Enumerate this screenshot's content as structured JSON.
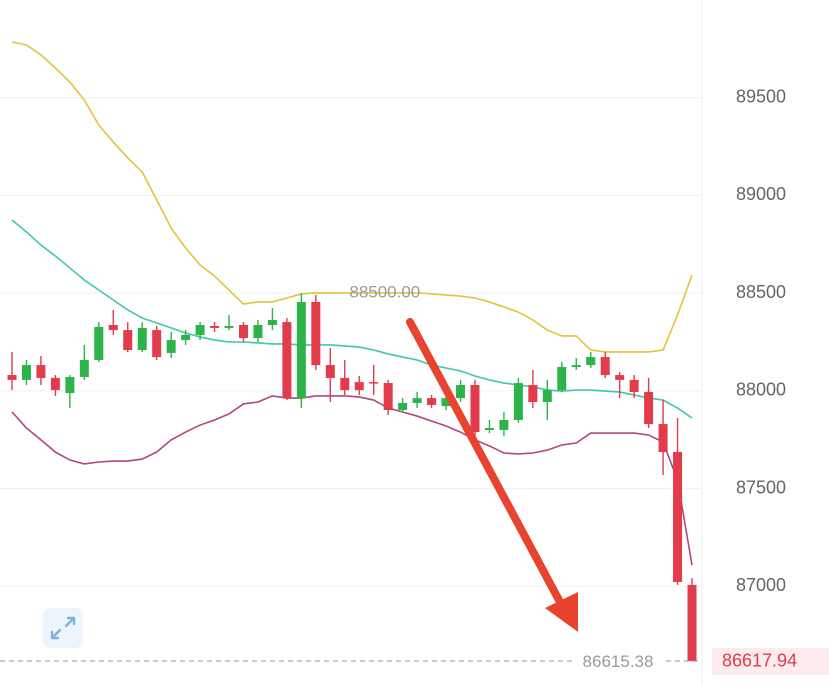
{
  "chart_data": {
    "type": "candlestick",
    "ylim": [
      86500,
      90000
    ],
    "yticks": [
      87000,
      87500,
      88000,
      88500,
      89000,
      89500
    ],
    "grid": true,
    "up_color": "#2db34a",
    "down_color": "#e23b4b",
    "open": [
      88081,
      88056,
      88132,
      88066,
      87989,
      88071,
      88158,
      88337,
      88311,
      88209,
      88311,
      88194,
      88260,
      88286,
      88332,
      88322,
      88337,
      88270,
      88337,
      88352,
      87963,
      88455,
      88132,
      88066,
      88045,
      88045,
      88040,
      87902,
      87938,
      87963,
      87922,
      87963,
      88030,
      87800,
      87800,
      87851,
      88030,
      87943,
      88004,
      88122,
      88132,
      88173,
      88081,
      88056,
      87994,
      87830,
      87687,
      87007
    ],
    "high": [
      88199,
      88158,
      88178,
      88081,
      88081,
      88235,
      88352,
      88414,
      88352,
      88352,
      88332,
      88301,
      88311,
      88352,
      88352,
      88388,
      88352,
      88363,
      88424,
      88373,
      88500,
      88490,
      88219,
      88158,
      88076,
      88132,
      88056,
      87963,
      87994,
      87979,
      88030,
      88056,
      88056,
      87851,
      87892,
      88066,
      88107,
      88056,
      88148,
      88168,
      88199,
      88199,
      88096,
      88081,
      88066,
      87953,
      87861,
      87042
    ],
    "low": [
      88004,
      88030,
      88030,
      87974,
      87912,
      88056,
      88148,
      88286,
      88199,
      88199,
      88158,
      88168,
      88235,
      88260,
      88301,
      88311,
      88250,
      88250,
      88311,
      87953,
      87912,
      88107,
      87943,
      87979,
      87979,
      87979,
      87876,
      87892,
      87912,
      87912,
      87902,
      87943,
      87749,
      87784,
      87769,
      87836,
      87912,
      87851,
      87994,
      88107,
      88117,
      88066,
      87963,
      87963,
      87810,
      87569,
      87007,
      86615.38
    ],
    "close": [
      88056,
      88132,
      88066,
      88004,
      88071,
      88158,
      88327,
      88311,
      88209,
      88322,
      88173,
      88260,
      88286,
      88337,
      88322,
      88332,
      88270,
      88337,
      88363,
      87963,
      88455,
      88132,
      88066,
      88004,
      88004,
      88040,
      87902,
      87938,
      87963,
      87928,
      87963,
      88030,
      87789,
      87810,
      87851,
      88040,
      87943,
      88004,
      88122,
      88132,
      88173,
      88081,
      88056,
      87994,
      87830,
      87687,
      87022,
      86617.94
    ],
    "bands": [
      {
        "color": "#e2c43c",
        "values": [
          89785,
          89770,
          89719,
          89652,
          89580,
          89488,
          89360,
          89273,
          89192,
          89120,
          88977,
          88833,
          88731,
          88644,
          88588,
          88516,
          88444,
          88455,
          88455,
          88475,
          88496,
          88501,
          88501,
          88501,
          88501,
          88501,
          88501,
          88501,
          88501,
          88496,
          88490,
          88485,
          88475,
          88455,
          88429,
          88403,
          88363,
          88311,
          88281,
          88281,
          88209,
          88199,
          88199,
          88199,
          88199,
          88209,
          88388,
          88593
        ]
      },
      {
        "color": "#3ec9a7",
        "values": [
          88874,
          88813,
          88746,
          88690,
          88629,
          88567,
          88516,
          88465,
          88414,
          88373,
          88347,
          88322,
          88296,
          88276,
          88260,
          88250,
          88250,
          88245,
          88240,
          88240,
          88235,
          88235,
          88235,
          88230,
          88224,
          88209,
          88189,
          88173,
          88158,
          88132,
          88117,
          88102,
          88076,
          88056,
          88040,
          88030,
          88020,
          88004,
          87999,
          88004,
          88004,
          87999,
          87994,
          87979,
          87963,
          87953,
          87912,
          87861
        ]
      },
      {
        "color": "#b4457f",
        "values": [
          87892,
          87810,
          87749,
          87687,
          87646,
          87626,
          87636,
          87641,
          87641,
          87651,
          87687,
          87749,
          87789,
          87825,
          87851,
          87882,
          87933,
          87943,
          87974,
          87963,
          87963,
          87974,
          87974,
          87974,
          87969,
          87953,
          87912,
          87892,
          87871,
          87846,
          87820,
          87789,
          87749,
          87718,
          87682,
          87677,
          87682,
          87697,
          87723,
          87733,
          87784,
          87784,
          87784,
          87784,
          87774,
          87738,
          87544,
          87109
        ]
      }
    ],
    "high_label": {
      "value": 88500,
      "label": "88500.00"
    }
  }
}
